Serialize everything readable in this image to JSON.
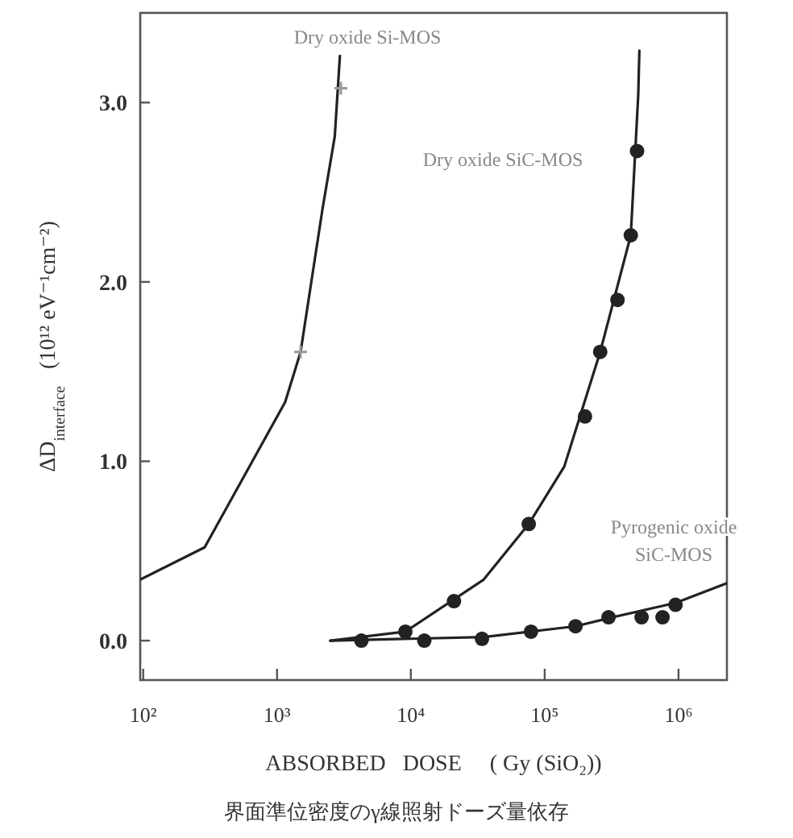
{
  "chart_data": {
    "type": "line",
    "xlabel": "ABSORBED   DOSE     ( Gy (SiO₂))",
    "ylabel": "ΔD$_{interface}$   (10¹² eV⁻¹cm⁻²)",
    "log": "x",
    "xlim": [
      95,
      2300000
    ],
    "xticks": [
      {
        "value": 100,
        "label": "10²"
      },
      {
        "value": 1000,
        "label": "10³"
      },
      {
        "value": 10000,
        "label": "10⁴"
      },
      {
        "value": 100000,
        "label": "10⁵"
      },
      {
        "value": 1000000,
        "label": "10⁶"
      }
    ],
    "ylim": [
      -0.22,
      3.5
    ],
    "yticks": [
      {
        "value": 0,
        "label": "0.0"
      },
      {
        "value": 1,
        "label": "1.0"
      },
      {
        "value": 2,
        "label": "2.0"
      },
      {
        "value": 3,
        "label": "3.0"
      }
    ],
    "series": [
      {
        "color": "#222222",
        "line_style": "solid",
        "x": [
          95,
          288,
          1150,
          1500,
          2190,
          2700,
          2950
        ],
        "values": [
          0.34,
          0.52,
          1.33,
          1.61,
          2.41,
          2.81,
          3.26
        ]
      },
      {
        "type": "scatter",
        "color": "#999999",
        "marker": "cross",
        "x": [
          1500,
          3000
        ],
        "values": [
          1.61,
          3.08
        ]
      },
      {
        "color": "#222222",
        "line_style": "solid",
        "x": [
          2500,
          9100,
          35000,
          76000,
          140000,
          260000,
          440000,
          500000,
          510000
        ],
        "values": [
          0.0,
          0.05,
          0.34,
          0.65,
          0.97,
          1.61,
          2.26,
          3.04,
          3.29
        ]
      },
      {
        "type": "scatter",
        "color": "#222222",
        "marker": "circle",
        "x": [
          4270,
          9100,
          21000,
          76000,
          200000,
          260000,
          350000,
          440000,
          490000
        ],
        "values": [
          0.0,
          0.05,
          0.22,
          0.65,
          1.25,
          1.61,
          1.9,
          2.26,
          2.73
        ]
      },
      {
        "color": "#222222",
        "line_style": "solid",
        "x": [
          2500,
          35000,
          170000,
          320000,
          950000,
          2300000
        ],
        "values": [
          0.0,
          0.02,
          0.08,
          0.13,
          0.21,
          0.32
        ]
      },
      {
        "type": "scatter",
        "color": "#222222",
        "marker": "circle",
        "x": [
          12600,
          34000,
          79000,
          170000,
          300000,
          530000,
          760000,
          950000
        ],
        "values": [
          0.0,
          0.01,
          0.05,
          0.08,
          0.13,
          0.13,
          0.13,
          0.2
        ]
      }
    ],
    "annotations": [
      "Dry oxide Si-MOS",
      "Dry oxide SiC-MOS",
      "Pyrogenic oxide\nSiC-MOS",
      "界面準位密度のγ線照射ドーズ量依存"
    ]
  }
}
